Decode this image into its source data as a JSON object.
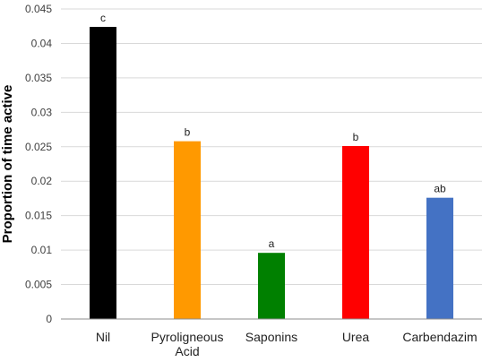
{
  "chart_data": {
    "type": "bar",
    "title": "",
    "xlabel": "",
    "ylabel": "Proportion of time active",
    "ylim": [
      0,
      0.045
    ],
    "yticks": [
      0,
      0.005,
      0.01,
      0.015,
      0.02,
      0.025,
      0.03,
      0.035,
      0.04,
      0.045
    ],
    "ytick_labels": [
      "0",
      "0.005",
      "0.01",
      "0.015",
      "0.02",
      "0.025",
      "0.03",
      "0.035",
      "0.04",
      "0.045"
    ],
    "grid": true,
    "legend": "none",
    "categories": [
      [
        "Nil"
      ],
      [
        "Pyroligneous",
        "Acid"
      ],
      [
        "Saponins"
      ],
      [
        "Urea"
      ],
      [
        "Carbendazim"
      ]
    ],
    "values": [
      0.0424,
      0.0258,
      0.0096,
      0.0251,
      0.0176
    ],
    "data_labels": [
      "c",
      "b",
      "a",
      "b",
      "ab"
    ],
    "colors": [
      "#000000",
      "#ff9900",
      "#008000",
      "#ff0000",
      "#4472c4"
    ]
  }
}
